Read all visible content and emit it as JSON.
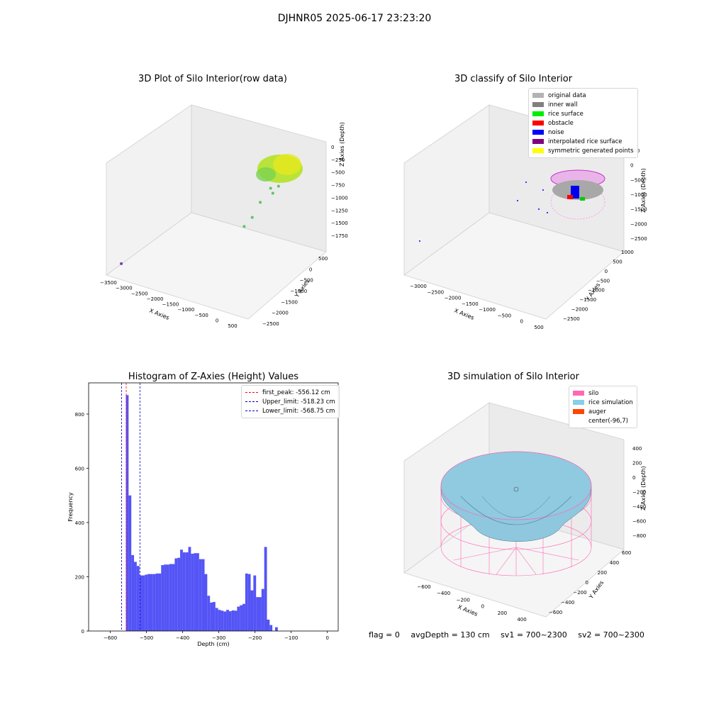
{
  "suptitle": "DJHNR05 2025-06-17 23:23:20",
  "status": {
    "flag": "flag = 0",
    "avg_depth": "avgDepth = 130 cm",
    "sv1": "sv1 = 700~2300",
    "sv2": "sv2 = 700~2300"
  },
  "colors": {
    "histogram_bar": "#4b4bf5",
    "first_peak_line": "#ff0000",
    "limit_lines": "#0000cc",
    "silo": "#ff69b4",
    "rice_simulation": "#87ceeb",
    "auger": "#ff4500",
    "original_data": "#b3b3b3",
    "inner_wall": "#808080",
    "rice_surface": "#00ee00",
    "obstacle": "#ff0000",
    "noise": "#0000ff",
    "interpolated_rice_surface": "#800080",
    "symmetric_generated_points": "#ffff00"
  },
  "chart_data": [
    {
      "type": "scatter",
      "subtype": "3d",
      "title": "3D Plot of Silo Interior(row data)",
      "xlabel": "X Axies",
      "ylabel": "Y Axies",
      "zlabel": "Z Axies (Depth)",
      "x_ticks": [
        "−3500",
        "−3000",
        "−2500",
        "−2000",
        "−1500",
        "−1000",
        "−500",
        "0",
        "500"
      ],
      "y_ticks": [
        "500",
        "0",
        "−500",
        "−1000",
        "−1500",
        "−2000",
        "−2500"
      ],
      "z_ticks": [
        "0",
        "−250",
        "−500",
        "−750",
        "−1000",
        "−1250",
        "−1500",
        "−1750"
      ],
      "xlim": [
        -3500,
        700
      ],
      "ylim": [
        -2500,
        700
      ],
      "zlim": [
        -1800,
        0
      ],
      "points": [
        {
          "x": -3300,
          "y": -2300,
          "z": -1500
        },
        {
          "x": -600,
          "y": 200,
          "z": -650
        },
        {
          "x": -550,
          "y": 300,
          "z": -500
        },
        {
          "x": -500,
          "y": 150,
          "z": -700
        },
        {
          "x": -700,
          "y": -100,
          "z": -800
        },
        {
          "x": -800,
          "y": -300,
          "z": -1000
        },
        {
          "x": -900,
          "y": -500,
          "z": -1100
        },
        {
          "x": -450,
          "y": 100,
          "z": -450
        },
        {
          "x": -400,
          "y": 250,
          "z": -600
        }
      ]
    },
    {
      "type": "scatter",
      "subtype": "3d",
      "title": "3D classify of Silo Interior",
      "xlabel": "X Axies",
      "ylabel": "Y Axies",
      "zlabel": "Z Axies (Depth)",
      "x_ticks": [
        "−3000",
        "−2500",
        "−2000",
        "−1500",
        "−1000",
        "−500",
        "0",
        "500"
      ],
      "y_ticks": [
        "1000",
        "500",
        "0",
        "−500",
        "−1000",
        "−1500",
        "−2000",
        "−2500"
      ],
      "z_ticks": [
        "500",
        "0",
        "−500",
        "−1000",
        "−1500",
        "−2000",
        "−2500"
      ],
      "legend": [
        {
          "label": "original data",
          "color": "#b3b3b3"
        },
        {
          "label": "inner wall",
          "color": "#808080"
        },
        {
          "label": "rice surface",
          "color": "#00ee00"
        },
        {
          "label": "obstacle",
          "color": "#ff0000"
        },
        {
          "label": "noise",
          "color": "#0000ff"
        },
        {
          "label": "interpolated rice surface",
          "color": "#800080"
        },
        {
          "label": "symmetric generated points",
          "color": "#ffff00"
        }
      ]
    },
    {
      "type": "bar",
      "subtype": "histogram",
      "title": "Histogram of Z-Axies (Height) Values",
      "xlabel": "Depth (cm)",
      "ylabel": "Frequency",
      "xlim": [
        -660,
        30
      ],
      "ylim": [
        0,
        915
      ],
      "x_ticks": [
        -600,
        -500,
        -400,
        -300,
        -200,
        -100,
        0
      ],
      "y_ticks": [
        0,
        200,
        400,
        600,
        800
      ],
      "bin_width": 7.5,
      "bins": [
        {
          "x": -557,
          "count": 870
        },
        {
          "x": -549.5,
          "count": 500
        },
        {
          "x": -542,
          "count": 280
        },
        {
          "x": -534.5,
          "count": 255
        },
        {
          "x": -527,
          "count": 240
        },
        {
          "x": -519.5,
          "count": 205
        },
        {
          "x": -512,
          "count": 205
        },
        {
          "x": -504.5,
          "count": 208
        },
        {
          "x": -497,
          "count": 210
        },
        {
          "x": -489.5,
          "count": 210
        },
        {
          "x": -482,
          "count": 210
        },
        {
          "x": -474.5,
          "count": 212
        },
        {
          "x": -467,
          "count": 212
        },
        {
          "x": -459.5,
          "count": 243
        },
        {
          "x": -452,
          "count": 245
        },
        {
          "x": -444.5,
          "count": 245
        },
        {
          "x": -437,
          "count": 247
        },
        {
          "x": -429.5,
          "count": 247
        },
        {
          "x": -422,
          "count": 268
        },
        {
          "x": -414.5,
          "count": 270
        },
        {
          "x": -407,
          "count": 300
        },
        {
          "x": -399.5,
          "count": 290
        },
        {
          "x": -392,
          "count": 290
        },
        {
          "x": -384.5,
          "count": 310
        },
        {
          "x": -377,
          "count": 285
        },
        {
          "x": -369.5,
          "count": 287
        },
        {
          "x": -362,
          "count": 287
        },
        {
          "x": -354.5,
          "count": 265
        },
        {
          "x": -347,
          "count": 265
        },
        {
          "x": -339.5,
          "count": 210
        },
        {
          "x": -332,
          "count": 130
        },
        {
          "x": -324.5,
          "count": 105
        },
        {
          "x": -317,
          "count": 107
        },
        {
          "x": -309.5,
          "count": 85
        },
        {
          "x": -302,
          "count": 78
        },
        {
          "x": -294.5,
          "count": 75
        },
        {
          "x": -287,
          "count": 72
        },
        {
          "x": -279.5,
          "count": 78
        },
        {
          "x": -272,
          "count": 73
        },
        {
          "x": -264.5,
          "count": 76
        },
        {
          "x": -257,
          "count": 75
        },
        {
          "x": -249.5,
          "count": 90
        },
        {
          "x": -242,
          "count": 95
        },
        {
          "x": -234.5,
          "count": 100
        },
        {
          "x": -227,
          "count": 212
        },
        {
          "x": -219.5,
          "count": 210
        },
        {
          "x": -212,
          "count": 150
        },
        {
          "x": -204.5,
          "count": 205
        },
        {
          "x": -197,
          "count": 125
        },
        {
          "x": -189.5,
          "count": 125
        },
        {
          "x": -182,
          "count": 155
        },
        {
          "x": -174.5,
          "count": 310
        },
        {
          "x": -167,
          "count": 42
        },
        {
          "x": -159.5,
          "count": 22
        },
        {
          "x": -152,
          "count": 0
        },
        {
          "x": -144.5,
          "count": 14
        }
      ],
      "vlines": [
        {
          "label": "first_peak: -556.12 cm",
          "x": -556.12,
          "color": "#ff0000"
        },
        {
          "label": "Upper_limit: -518.23 cm",
          "x": -518.23,
          "color": "#0000cc"
        },
        {
          "label": "Lower_limit: -568.75 cm",
          "x": -568.75,
          "color": "#0000cc"
        }
      ]
    },
    {
      "type": "area",
      "subtype": "3d-surface",
      "title": "3D simulation of Silo Interior",
      "xlabel": "X Axies",
      "ylabel": "Y Axies",
      "zlabel": "Z Axies (Depth)",
      "x_ticks": [
        "−600",
        "−400",
        "−200",
        "0",
        "200",
        "400"
      ],
      "y_ticks": [
        "600",
        "400",
        "200",
        "0",
        "−200",
        "−400",
        "−600"
      ],
      "z_ticks": [
        "400",
        "200",
        "0",
        "−200",
        "−400",
        "−600",
        "−800"
      ],
      "legend": [
        {
          "label": "silo",
          "color": "#ff69b4"
        },
        {
          "label": "rice simulation",
          "color": "#87ceeb"
        },
        {
          "label": "auger",
          "color": "#ff4500"
        },
        {
          "label": "center(-96,7)",
          "color": ""
        }
      ]
    }
  ]
}
